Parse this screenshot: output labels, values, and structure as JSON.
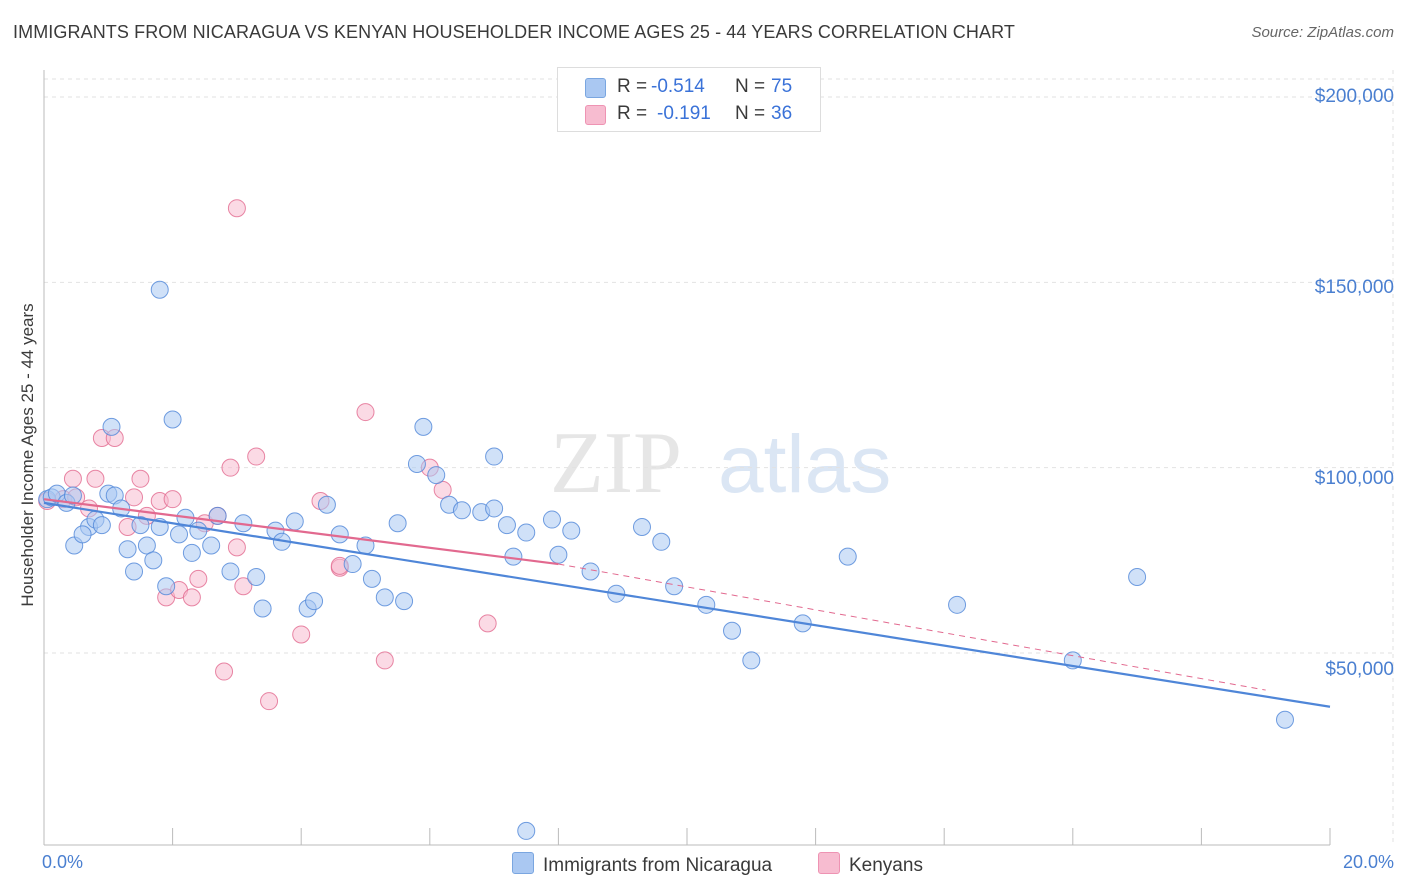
{
  "header": {
    "title": "IMMIGRANTS FROM NICARAGUA VS KENYAN HOUSEHOLDER INCOME AGES 25 - 44 YEARS CORRELATION CHART",
    "source": "Source: ZipAtlas.com"
  },
  "watermark": {
    "zip": "ZIP",
    "atlas": "atlas"
  },
  "legend": {
    "rows": [
      {
        "r_label": "R =",
        "r_value": "-0.514",
        "n_label": "N =",
        "n_value": "75",
        "color": "#aac8f2",
        "border": "#7aa6e0"
      },
      {
        "r_label": "R =",
        "r_value": "-0.191",
        "n_label": "N =",
        "n_value": "36",
        "color": "#f7bcd0",
        "border": "#ee93b3"
      }
    ]
  },
  "bottom_legend": {
    "series_a": "Immigrants from Nicaragua",
    "series_b": "Kenyans"
  },
  "chart_data": {
    "type": "scatter",
    "title": "IMMIGRANTS FROM NICARAGUA VS KENYAN HOUSEHOLDER INCOME AGES 25 - 44 YEARS CORRELATION CHART",
    "xlabel": "",
    "ylabel": "Householder Income Ages 25 - 44 years",
    "xlim": [
      0,
      20
    ],
    "ylim": [
      0,
      210000
    ],
    "x_tick_labels": [
      "0.0%",
      "20.0%"
    ],
    "y_tick_labels": [
      "$200,000",
      "$150,000",
      "$100,000",
      "$50,000"
    ],
    "y_ticks": [
      200000,
      150000,
      100000,
      50000
    ],
    "grid": true,
    "colors": {
      "blue": "#4f86d8",
      "blue_fill": "#aac8f2",
      "pink": "#e2698f",
      "pink_fill": "#f7bcd0"
    },
    "series": [
      {
        "name": "Immigrants from Nicaragua",
        "r": -0.514,
        "n": 75,
        "trend": {
          "x": [
            0,
            20
          ],
          "y": [
            90500,
            35500
          ]
        },
        "points": [
          [
            0.05,
            91500
          ],
          [
            0.12,
            92000
          ],
          [
            0.2,
            93000
          ],
          [
            0.35,
            90500
          ],
          [
            0.45,
            92500
          ],
          [
            0.47,
            79000
          ],
          [
            0.7,
            84000
          ],
          [
            0.6,
            82000
          ],
          [
            0.8,
            86000
          ],
          [
            0.9,
            84500
          ],
          [
            1.0,
            93000
          ],
          [
            1.1,
            92500
          ],
          [
            1.2,
            89000
          ],
          [
            1.3,
            78000
          ],
          [
            1.4,
            72000
          ],
          [
            1.5,
            84500
          ],
          [
            1.6,
            79000
          ],
          [
            1.7,
            75000
          ],
          [
            1.8,
            84000
          ],
          [
            1.9,
            68000
          ],
          [
            2.1,
            82000
          ],
          [
            2.2,
            86500
          ],
          [
            2.3,
            77000
          ],
          [
            2.4,
            83000
          ],
          [
            2.6,
            79000
          ],
          [
            2.7,
            87000
          ],
          [
            2.9,
            72000
          ],
          [
            3.1,
            85000
          ],
          [
            3.3,
            70500
          ],
          [
            3.4,
            62000
          ],
          [
            3.6,
            83000
          ],
          [
            3.7,
            80000
          ],
          [
            3.9,
            85500
          ],
          [
            4.1,
            62000
          ],
          [
            4.2,
            64000
          ],
          [
            4.4,
            90000
          ],
          [
            4.6,
            82000
          ],
          [
            4.8,
            74000
          ],
          [
            5.0,
            79000
          ],
          [
            5.1,
            70000
          ],
          [
            5.3,
            65000
          ],
          [
            5.5,
            85000
          ],
          [
            5.6,
            64000
          ],
          [
            5.8,
            101000
          ],
          [
            5.9,
            111000
          ],
          [
            6.1,
            98000
          ],
          [
            6.3,
            90000
          ],
          [
            6.5,
            88500
          ],
          [
            6.8,
            88000
          ],
          [
            7.0,
            89000
          ],
          [
            7.2,
            84500
          ],
          [
            7.3,
            76000
          ],
          [
            7.5,
            82500
          ],
          [
            7.9,
            86000
          ],
          [
            8.0,
            76500
          ],
          [
            8.2,
            83000
          ],
          [
            8.5,
            72000
          ],
          [
            8.9,
            66000
          ],
          [
            9.3,
            84000
          ],
          [
            9.6,
            80000
          ],
          [
            9.8,
            68000
          ],
          [
            10.3,
            63000
          ],
          [
            10.7,
            56000
          ],
          [
            11.0,
            48000
          ],
          [
            11.8,
            58000
          ],
          [
            12.5,
            76000
          ],
          [
            14.2,
            63000
          ],
          [
            16.0,
            48000
          ],
          [
            17.0,
            70500
          ],
          [
            19.3,
            32000
          ],
          [
            1.8,
            148000
          ],
          [
            2.0,
            113000
          ],
          [
            1.05,
            111000
          ],
          [
            7.0,
            103000
          ],
          [
            7.5,
            2000
          ]
        ]
      },
      {
        "name": "Kenyans",
        "r": -0.191,
        "n": 36,
        "trend": {
          "x": [
            0,
            8.0
          ],
          "y": [
            91500,
            74000
          ]
        },
        "trend_ext": {
          "x": [
            8.0,
            19.0
          ],
          "y": [
            74000,
            40000
          ]
        },
        "points": [
          [
            0.05,
            91000
          ],
          [
            0.3,
            91500
          ],
          [
            0.45,
            97000
          ],
          [
            0.5,
            92000
          ],
          [
            0.7,
            89000
          ],
          [
            0.8,
            97000
          ],
          [
            0.9,
            108000
          ],
          [
            1.1,
            108000
          ],
          [
            1.3,
            84000
          ],
          [
            1.5,
            97000
          ],
          [
            1.6,
            87000
          ],
          [
            1.8,
            91000
          ],
          [
            1.9,
            65000
          ],
          [
            2.0,
            91500
          ],
          [
            2.1,
            67000
          ],
          [
            2.3,
            65000
          ],
          [
            2.4,
            70000
          ],
          [
            2.5,
            85000
          ],
          [
            2.7,
            87000
          ],
          [
            2.8,
            45000
          ],
          [
            2.9,
            100000
          ],
          [
            3.0,
            78500
          ],
          [
            3.1,
            68000
          ],
          [
            3.3,
            103000
          ],
          [
            3.5,
            37000
          ],
          [
            4.0,
            55000
          ],
          [
            4.3,
            91000
          ],
          [
            4.6,
            73000
          ],
          [
            5.0,
            115000
          ],
          [
            5.3,
            48000
          ],
          [
            6.0,
            100000
          ],
          [
            6.2,
            94000
          ],
          [
            6.9,
            58000
          ],
          [
            3.0,
            170000
          ],
          [
            1.4,
            92000
          ],
          [
            4.6,
            73500
          ]
        ]
      }
    ]
  }
}
